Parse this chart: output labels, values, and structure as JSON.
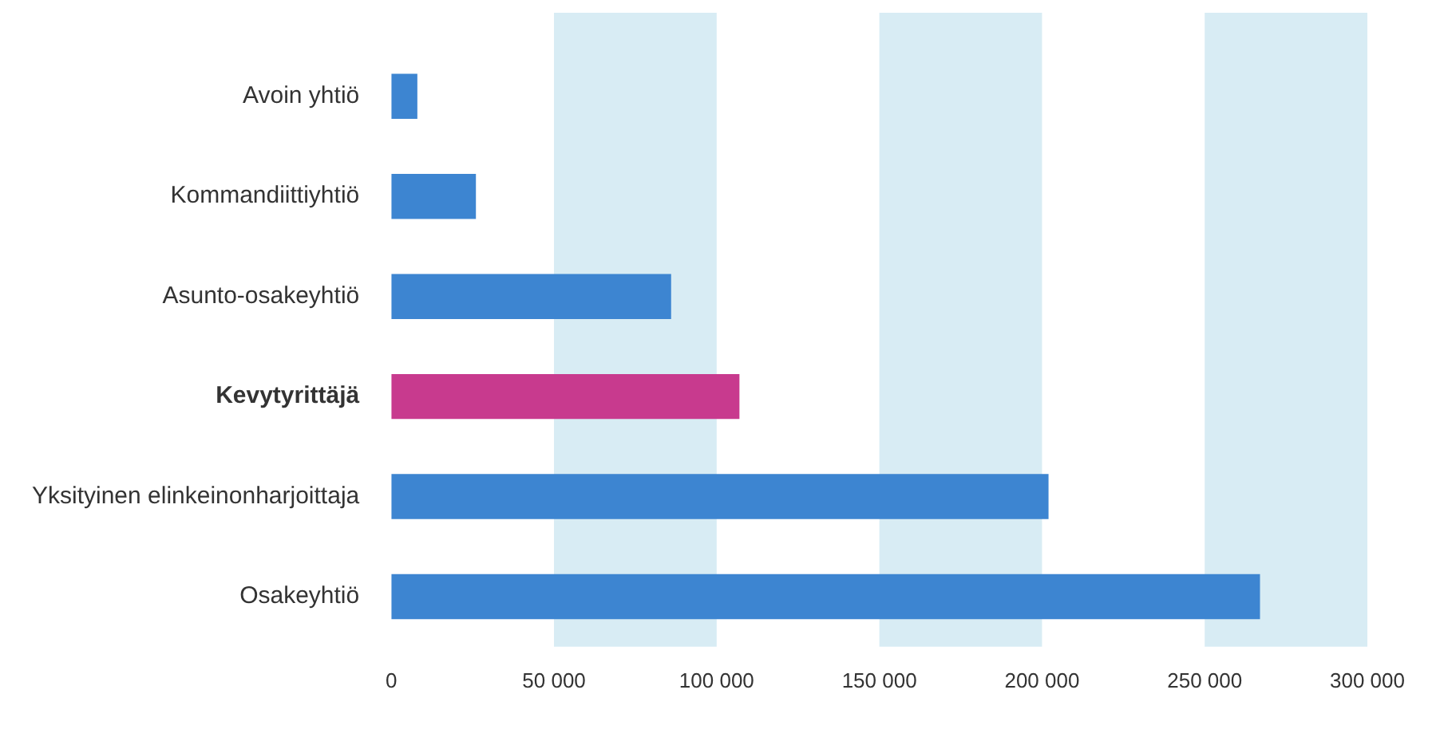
{
  "chart_data": {
    "type": "bar",
    "orientation": "horizontal",
    "categories": [
      "Avoin yhtiö",
      "Kommandiittiyhtiö",
      "Asunto-osakeyhtiö",
      "Kevytyrittäjä",
      "Yksityinen elinkeinonharjoittaja",
      "Osakeyhtiö"
    ],
    "values": [
      8000,
      26000,
      86000,
      107000,
      202000,
      267000
    ],
    "colors": [
      "#3d85d1",
      "#3d85d1",
      "#3d85d1",
      "#c83a8e",
      "#3d85d1",
      "#3d85d1"
    ],
    "xlim": [
      0,
      300000
    ],
    "xticks": [
      0,
      {
        "value": 50000,
        "label": "50 000"
      },
      {
        "value": 100000,
        "label": "100 000"
      },
      {
        "value": 150000,
        "label": "150 000"
      },
      {
        "value": 200000,
        "label": "200 000"
      },
      {
        "value": 250000,
        "label": "250 000"
      },
      {
        "value": 300000,
        "label": "300 000"
      }
    ],
    "bands": [
      {
        "axis": "x",
        "from": 50000,
        "to": 100000,
        "color": "#d8ecf4"
      },
      {
        "axis": "x",
        "from": 150000,
        "to": 200000,
        "color": "#d8ecf4"
      },
      {
        "axis": "x",
        "from": 250000,
        "to": 300000,
        "color": "#d8ecf4"
      }
    ],
    "grid": false,
    "legend": false
  }
}
